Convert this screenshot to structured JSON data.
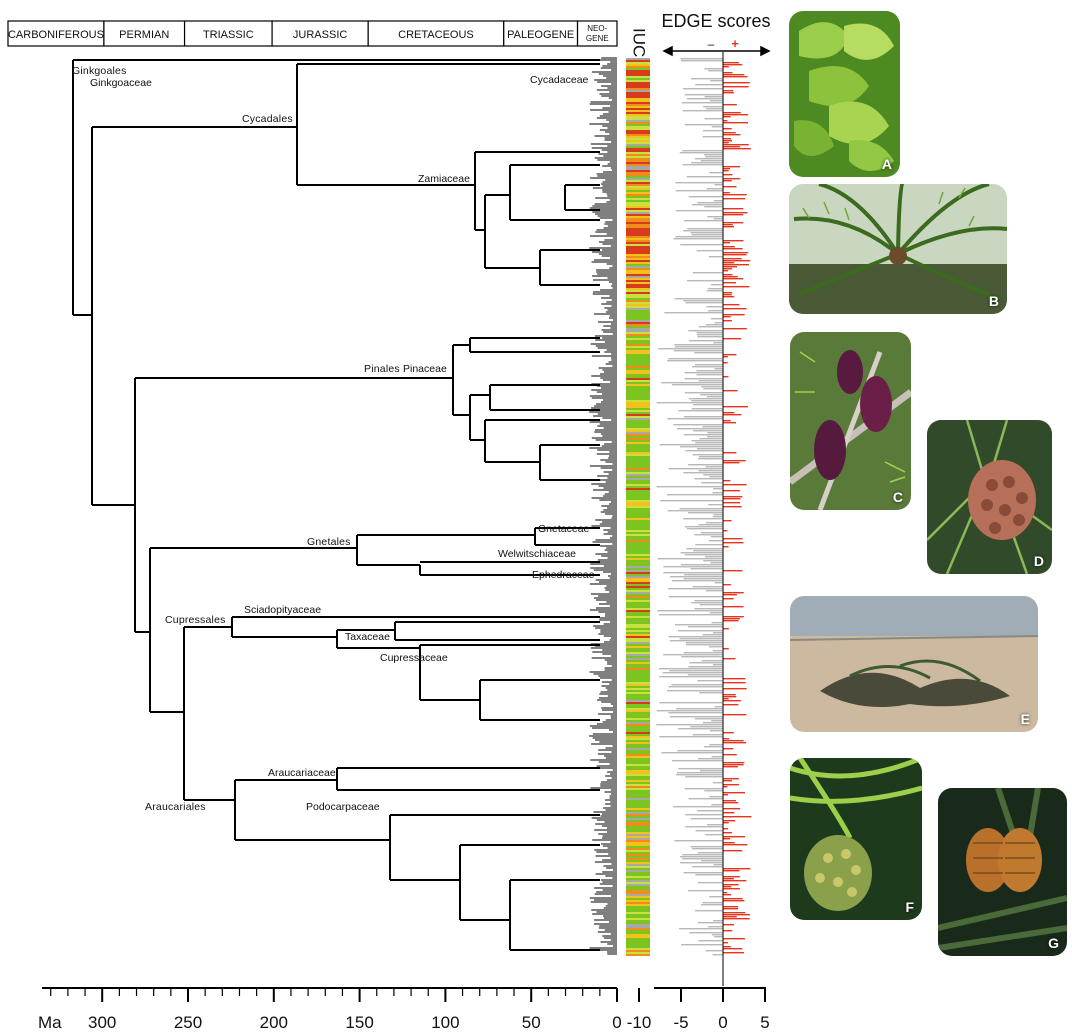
{
  "periods": [
    {
      "name": "CARBONIFEROUS",
      "start": 359,
      "end": 299
    },
    {
      "name": "PERMIAN",
      "start": 299,
      "end": 252
    },
    {
      "name": "TRIASSIC",
      "start": 252,
      "end": 201
    },
    {
      "name": "JURASSIC",
      "start": 201,
      "end": 145
    },
    {
      "name": "CRETACEOUS",
      "start": 145,
      "end": 66
    },
    {
      "name": "PALEOGENE",
      "start": 66,
      "end": 23
    },
    {
      "name": "NEO-",
      "name2": "GENE",
      "start": 23,
      "end": 0
    }
  ],
  "time_axis": {
    "unit_label": "Ma",
    "ticks": [
      300,
      250,
      200,
      150,
      100,
      50,
      0
    ]
  },
  "edge_axis": {
    "ticks": [
      -10,
      -5,
      0,
      5
    ],
    "minus_sign": "–",
    "plus_sign": "+"
  },
  "iucn_label": "IUCN",
  "edge_label": "EDGE scores",
  "clades": {
    "ginkgoales": "Ginkgoales",
    "ginkgoaceae": "Ginkgoaceae",
    "cycadales": "Cycadales",
    "cycadaceae": "Cycadaceae",
    "zamiaceae": "Zamiaceae",
    "pinales": "Pinales",
    "pinaceae": "Pinaceae",
    "gnetales": "Gnetales",
    "gnetaceae": "Gnetaceae",
    "welwitschiaceae": "Welwitschiaceae",
    "ephedraceae": "Ephedraceae",
    "cupressales": "Cupressales",
    "sciadopityaceae": "Sciadopityaceae",
    "taxaceae": "Taxaceae",
    "cupressaceae": "Cupressaceae",
    "araucariales": "Araucariales",
    "araucariaceae": "Araucariaceae",
    "podocarpaceae": "Podocarpaceae"
  },
  "photos": [
    {
      "label": "A",
      "icon": "ginkgo-leaves"
    },
    {
      "label": "B",
      "icon": "cycad-palm"
    },
    {
      "label": "C",
      "icon": "purple-cones"
    },
    {
      "label": "D",
      "icon": "pine-cone"
    },
    {
      "label": "E",
      "icon": "welwitschia-desert"
    },
    {
      "label": "F",
      "icon": "cycad-cone"
    },
    {
      "label": "G",
      "icon": "araucaria-cone"
    }
  ],
  "colors": {
    "positive_edge": "#e8341c",
    "negative_edge": "#b8b8b8",
    "iucn_lc": "#7cc420",
    "iucn_nt": "#c8e040",
    "iucn_vu": "#f2c21a",
    "iucn_en": "#f08c1a",
    "iucn_cr": "#d83a1c",
    "iucn_dd": "#a8a8a8"
  }
}
